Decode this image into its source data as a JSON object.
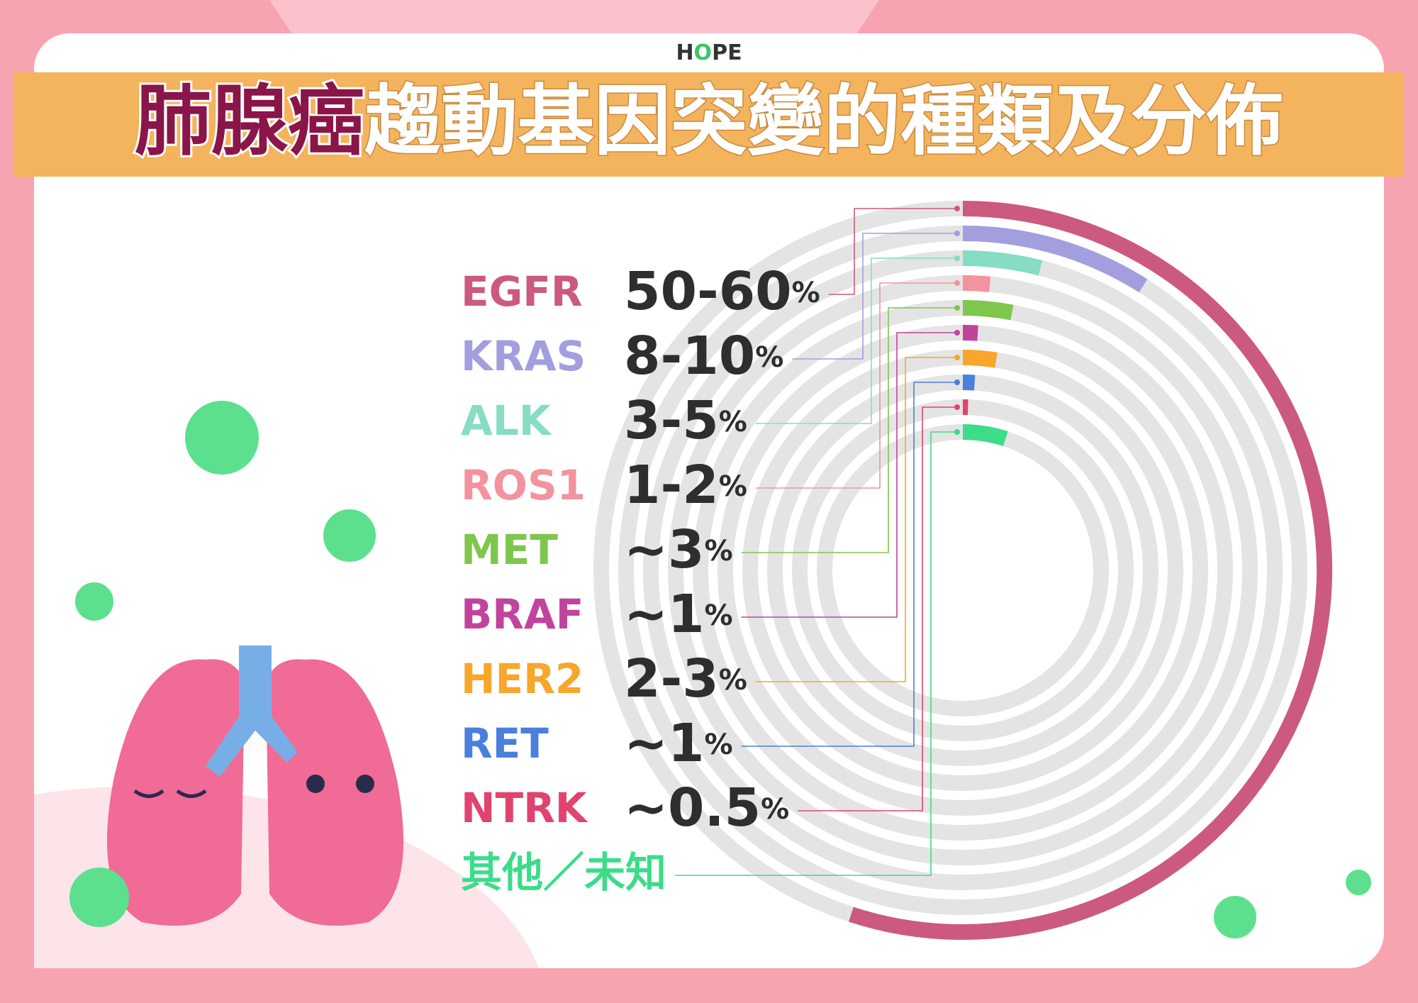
{
  "logo": "HOPE",
  "chart_data": {
    "type": "radial-bar",
    "title": "肺腺癌趨動基因突變的種類及分佈",
    "categories": [
      "EGFR",
      "KRAS",
      "ALK",
      "ROS1",
      "MET",
      "BRAF",
      "HER2",
      "RET",
      "NTRK",
      "其他／未知"
    ],
    "values": [
      55,
      9,
      4,
      1.5,
      3,
      1,
      2.5,
      1,
      0.5,
      5
    ],
    "value_labels": [
      "50-60%",
      "8-10%",
      "3-5%",
      "1-2%",
      "~3%",
      "~1%",
      "2-3%",
      "~1%",
      "~0.5%",
      null
    ],
    "colors": [
      "#cc5a7e",
      "#a39ede",
      "#86dcc4",
      "#f3939f",
      "#7fc64c",
      "#c0449c",
      "#f8a62c",
      "#4a7fdc",
      "#e0446e",
      "#3ddc8a"
    ]
  }
}
